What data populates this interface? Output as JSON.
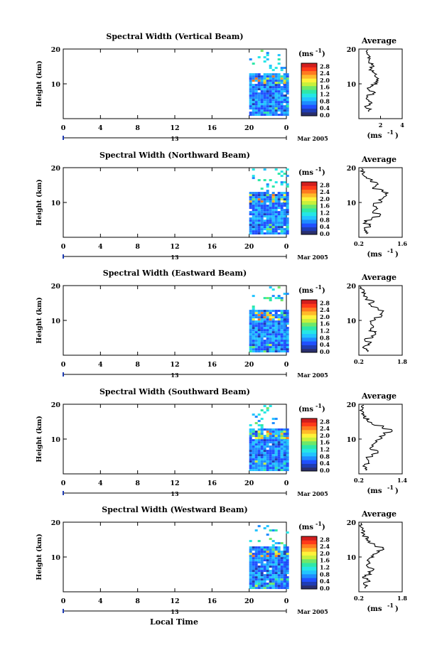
{
  "colorbar_ticks": [
    "0.0",
    "0.4",
    "0.8",
    "1.2",
    "1.6",
    "2.0",
    "2.4",
    "2.8"
  ],
  "colorbar_unit": "(ms",
  "colorbar_unit_sup": "-1",
  "time_ticks": [
    "0",
    "4",
    "8",
    "12",
    "16",
    "20",
    "0"
  ],
  "day_label": "13",
  "month_label": "Mar 2005",
  "height_ticks": [
    "20",
    "10"
  ],
  "x_axis_label": "Local Time",
  "y_axis_label": "Height (km)",
  "avg_title": "Average",
  "chart_data": [
    {
      "type": "heatmap",
      "title": "Spectral Width (Vertical Beam)",
      "xlabel": "Local Time",
      "ylabel": "Height (km)",
      "xlim": [
        0,
        24
      ],
      "ylim": [
        0,
        20
      ],
      "data_time_range": [
        20,
        24
      ],
      "data_height_range": [
        0.8,
        19
      ],
      "colorbar_range": [
        0,
        3.0
      ],
      "colorbar_label": "(ms-1)",
      "data_note": "mostly dark blue (0.4-1.2 ms-1) with scattered cyan/green pixels; gaps above ~13 km",
      "average": {
        "title": "Average",
        "xlabel": "(ms-1)",
        "xticks": [
          "2",
          "4"
        ],
        "xlim": [
          0,
          4
        ],
        "ylim": [
          0,
          20
        ],
        "profile": [
          [
            1.0,
            2
          ],
          [
            0.7,
            3
          ],
          [
            1.1,
            4
          ],
          [
            0.8,
            5
          ],
          [
            0.7,
            6
          ],
          [
            1.4,
            7
          ],
          [
            0.9,
            8
          ],
          [
            1.2,
            9
          ],
          [
            1.6,
            10
          ],
          [
            1.8,
            11
          ],
          [
            1.6,
            12
          ],
          [
            1.3,
            13
          ],
          [
            1.1,
            14
          ],
          [
            1.3,
            15
          ],
          [
            1.0,
            16
          ],
          [
            0.9,
            17
          ],
          [
            0.8,
            18
          ],
          [
            0.7,
            19
          ]
        ]
      }
    },
    {
      "type": "heatmap",
      "title": "Spectral Width (Northward Beam)",
      "xlabel": "Local Time",
      "ylabel": "Height (km)",
      "xlim": [
        0,
        24
      ],
      "ylim": [
        0,
        20
      ],
      "data_time_range": [
        20,
        24
      ],
      "data_height_range": [
        0.8,
        18
      ],
      "colorbar_range": [
        0,
        3.0
      ],
      "colorbar_label": "(ms-1)",
      "data_note": "blue/cyan below ~12 km with green-yellow patches near 11-12 km; sparse above",
      "average": {
        "title": "Average",
        "xlabel": "(ms-1)",
        "xticks": [
          "0.2",
          "1.6"
        ],
        "xlim": [
          0.2,
          1.6
        ],
        "ylim": [
          0,
          20
        ],
        "profile": [
          [
            0.45,
            1
          ],
          [
            0.35,
            2
          ],
          [
            0.55,
            3
          ],
          [
            0.4,
            4
          ],
          [
            0.6,
            5
          ],
          [
            0.85,
            6
          ],
          [
            0.7,
            7
          ],
          [
            0.75,
            8
          ],
          [
            0.7,
            9
          ],
          [
            0.9,
            10
          ],
          [
            1.0,
            11
          ],
          [
            1.1,
            12
          ],
          [
            0.95,
            13
          ],
          [
            0.7,
            14
          ],
          [
            0.8,
            15
          ],
          [
            0.6,
            16
          ],
          [
            0.4,
            17
          ],
          [
            0.35,
            18
          ],
          [
            0.3,
            19
          ]
        ]
      }
    },
    {
      "type": "heatmap",
      "title": "Spectral Width (Eastward Beam)",
      "xlabel": "Local Time",
      "ylabel": "Height (km)",
      "xlim": [
        0,
        24
      ],
      "ylim": [
        0,
        20
      ],
      "data_time_range": [
        20,
        24
      ],
      "data_height_range": [
        0.8,
        18
      ],
      "colorbar_range": [
        0,
        3.0
      ],
      "colorbar_label": "(ms-1)",
      "data_note": "mostly blue/cyan with green near 12 km; sparse above 13 km",
      "average": {
        "title": "Average",
        "xlabel": "",
        "xticks": [
          "0.2",
          "1.8"
        ],
        "xlim": [
          0.2,
          1.8
        ],
        "ylim": [
          0,
          20
        ],
        "profile": [
          [
            0.5,
            1
          ],
          [
            0.4,
            2
          ],
          [
            0.6,
            3
          ],
          [
            0.45,
            4
          ],
          [
            0.7,
            5
          ],
          [
            0.8,
            6
          ],
          [
            0.6,
            7
          ],
          [
            0.7,
            8
          ],
          [
            0.65,
            9
          ],
          [
            0.8,
            10
          ],
          [
            1.0,
            11
          ],
          [
            1.1,
            12
          ],
          [
            0.9,
            13
          ],
          [
            0.6,
            14
          ],
          [
            0.7,
            15
          ],
          [
            0.5,
            16
          ],
          [
            0.4,
            17
          ],
          [
            0.35,
            18
          ],
          [
            0.3,
            19
          ]
        ]
      }
    },
    {
      "type": "heatmap",
      "title": "Spectral Width (Southward Beam)",
      "xlabel": "Local Time",
      "ylabel": "Height (km)",
      "xlim": [
        0,
        24
      ],
      "ylim": [
        0,
        20
      ],
      "data_time_range": [
        20,
        24
      ],
      "data_height_range": [
        0.8,
        19
      ],
      "colorbar_range": [
        0,
        3.0
      ],
      "colorbar_label": "(ms-1)",
      "data_note": "blue/cyan with green/yellow streaks near 12-13 km; scattered pixels above",
      "average": {
        "title": "Average",
        "xlabel": "(ms-1)",
        "xticks": [
          "0.2",
          "1.4"
        ],
        "xlim": [
          0.2,
          1.4
        ],
        "ylim": [
          0,
          20
        ],
        "profile": [
          [
            0.4,
            1
          ],
          [
            0.35,
            2
          ],
          [
            0.5,
            3
          ],
          [
            0.45,
            4
          ],
          [
            0.6,
            5
          ],
          [
            0.7,
            6
          ],
          [
            0.55,
            7
          ],
          [
            0.6,
            8
          ],
          [
            0.7,
            9
          ],
          [
            0.8,
            10
          ],
          [
            0.9,
            11
          ],
          [
            1.1,
            12
          ],
          [
            0.85,
            13
          ],
          [
            0.6,
            14
          ],
          [
            0.45,
            15
          ],
          [
            0.35,
            16
          ],
          [
            0.3,
            17
          ],
          [
            0.28,
            18
          ],
          [
            0.3,
            19
          ]
        ]
      }
    },
    {
      "type": "heatmap",
      "title": "Spectral Width (Westward Beam)",
      "xlabel": "Local Time",
      "ylabel": "Height (km)",
      "xlim": [
        0,
        24
      ],
      "ylim": [
        0,
        20
      ],
      "data_time_range": [
        20,
        24
      ],
      "data_height_range": [
        0.8,
        18
      ],
      "colorbar_range": [
        0,
        3.0
      ],
      "colorbar_label": "(ms-1)",
      "data_note": "blue/cyan with red/yellow patches near 12 km; sparse above",
      "average": {
        "title": "Average",
        "xlabel": "(ms-1)",
        "xticks": [
          "0.2",
          "1.8"
        ],
        "xlim": [
          0.2,
          1.8
        ],
        "ylim": [
          0,
          20
        ],
        "profile": [
          [
            0.45,
            1
          ],
          [
            0.4,
            2
          ],
          [
            0.55,
            3
          ],
          [
            0.4,
            4
          ],
          [
            0.6,
            5
          ],
          [
            0.7,
            6
          ],
          [
            0.5,
            7
          ],
          [
            0.6,
            8
          ],
          [
            0.55,
            9
          ],
          [
            0.7,
            10
          ],
          [
            0.9,
            11
          ],
          [
            1.1,
            12
          ],
          [
            0.8,
            13
          ],
          [
            0.55,
            14
          ],
          [
            0.5,
            15
          ],
          [
            0.4,
            16
          ],
          [
            0.35,
            17
          ],
          [
            0.3,
            18
          ],
          [
            0.28,
            19
          ]
        ]
      }
    }
  ]
}
